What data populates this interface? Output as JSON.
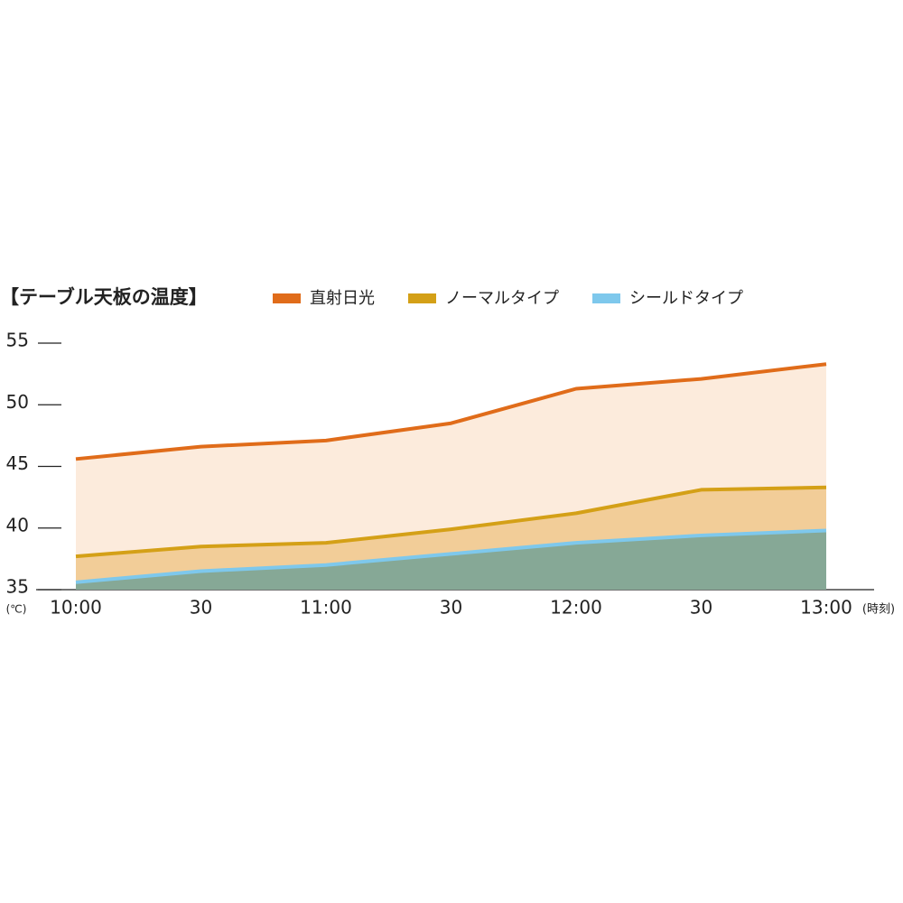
{
  "chart_data": {
    "type": "area",
    "title": "【テーブル天板の温度】",
    "y_unit": "(℃)",
    "x_unit": "(時刻)",
    "categories": [
      "10:00",
      "30",
      "11:00",
      "30",
      "12:00",
      "30",
      "13:00"
    ],
    "series": [
      {
        "name": "直射日光",
        "color": "#e06c1a",
        "fill": "#fcebdc",
        "values": [
          45.6,
          46.6,
          47.1,
          48.5,
          51.3,
          52.1,
          53.3
        ]
      },
      {
        "name": "ノーマルタイプ",
        "color": "#d4a017",
        "fill": "#f2cd98",
        "values": [
          37.7,
          38.5,
          38.8,
          39.9,
          41.2,
          43.1,
          43.3
        ]
      },
      {
        "name": "シールドタイプ",
        "color": "#7ec8ec",
        "fill": "#86a896",
        "values": [
          35.6,
          36.5,
          37.0,
          37.9,
          38.8,
          39.4,
          39.8
        ]
      }
    ],
    "ylim": [
      35,
      55
    ],
    "yticks": [
      35,
      40,
      45,
      50,
      55
    ],
    "grid": false
  }
}
